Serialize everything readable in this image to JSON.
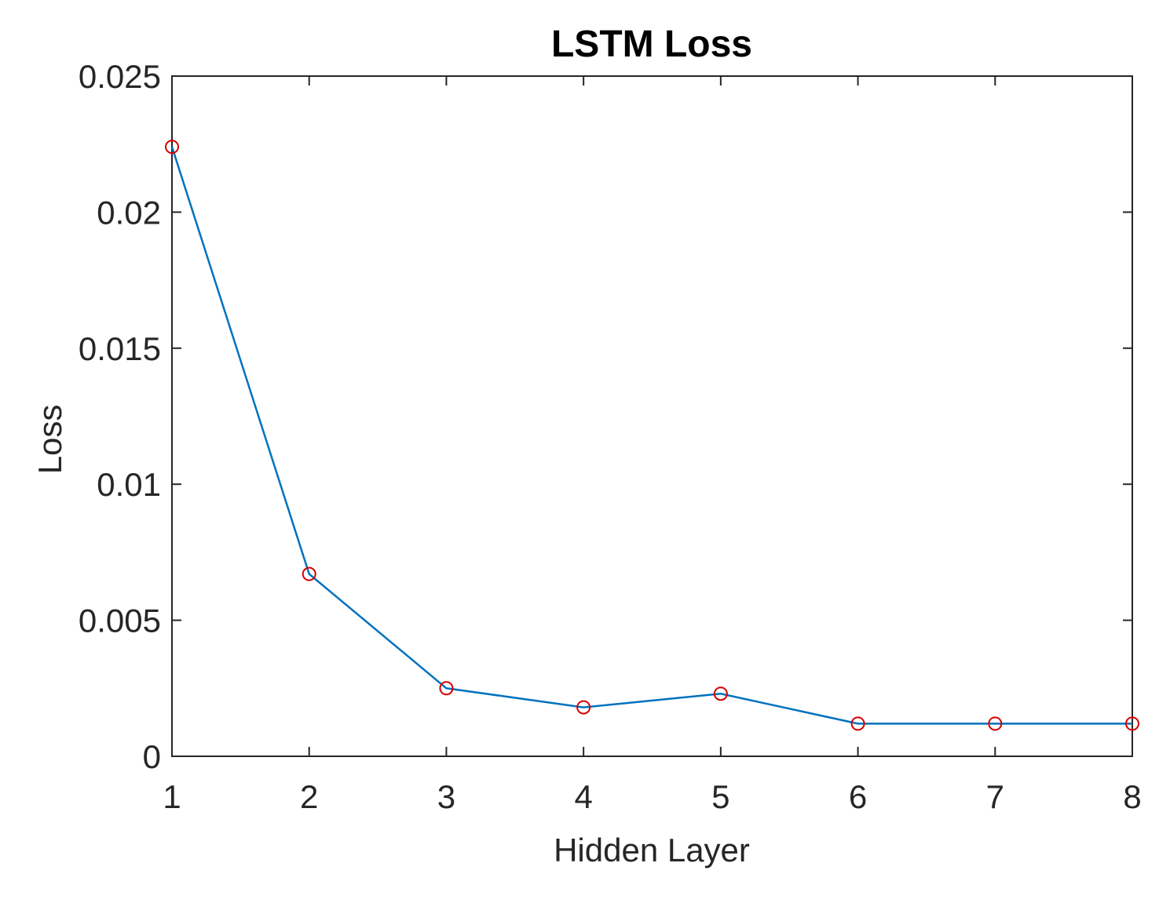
{
  "chart_data": {
    "type": "line",
    "title": "LSTM Loss",
    "xlabel": "Hidden Layer",
    "ylabel": "Loss",
    "x": [
      1,
      2,
      3,
      4,
      5,
      6,
      7,
      8
    ],
    "series": [
      {
        "values": [
          0.0224,
          0.0067,
          0.0025,
          0.0018,
          0.0023,
          0.0012,
          0.0012,
          0.0012
        ],
        "line_color": "#0072BD",
        "marker": "circle",
        "marker_color": "#D40000"
      }
    ],
    "xlim": [
      1,
      8
    ],
    "ylim": [
      0,
      0.025
    ],
    "xticks": [
      "1",
      "2",
      "3",
      "4",
      "5",
      "6",
      "7",
      "8"
    ],
    "yticks": [
      {
        "value": 0,
        "label": "0"
      },
      {
        "value": 0.005,
        "label": "0.005"
      },
      {
        "value": 0.01,
        "label": "0.01"
      },
      {
        "value": 0.015,
        "label": "0.015"
      },
      {
        "value": 0.02,
        "label": "0.02"
      },
      {
        "value": 0.025,
        "label": "0.025"
      }
    ],
    "grid": false,
    "box": true
  }
}
